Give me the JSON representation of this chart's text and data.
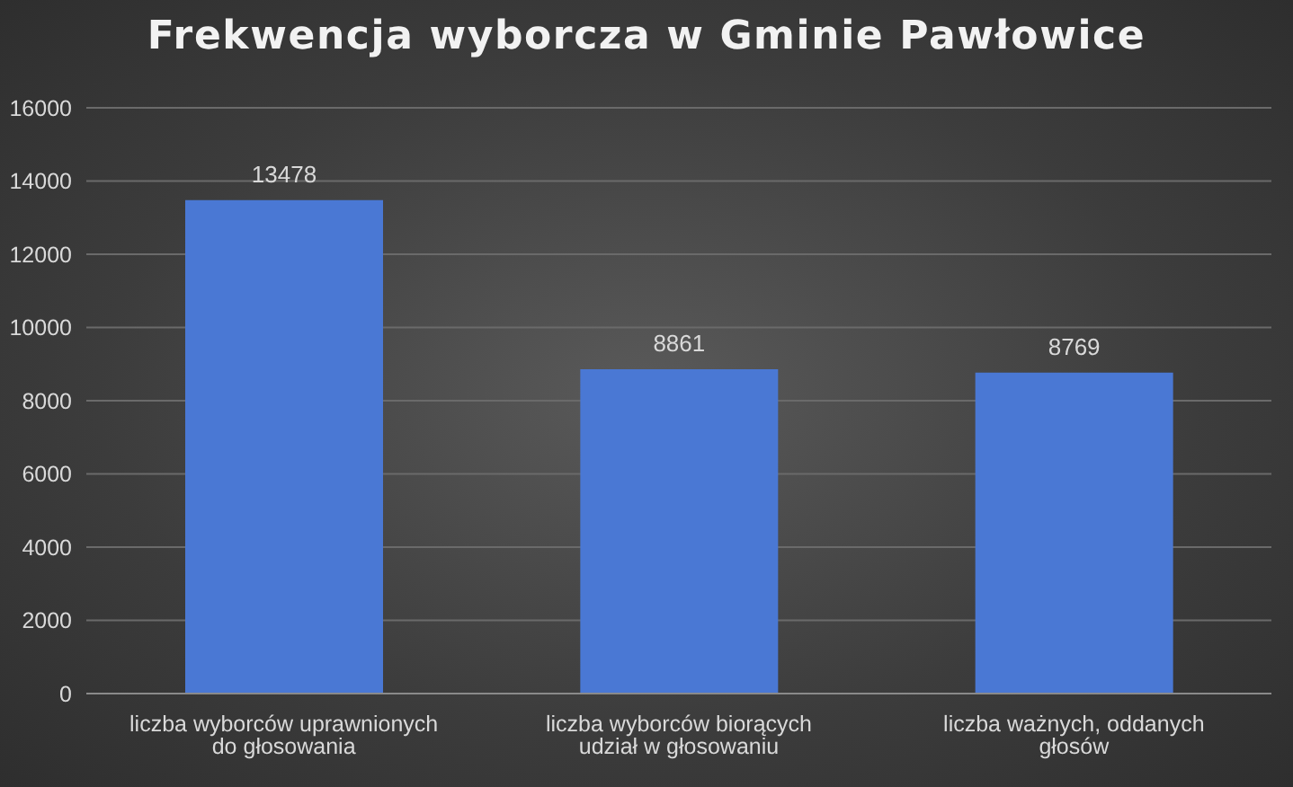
{
  "chart_data": {
    "type": "bar",
    "title": "Frekwencja wyborcza w Gminie Pawłowice",
    "categories": [
      "liczba wyborców uprawnionych do głosowania",
      "liczba wyborców biorących udział w głosowaniu",
      "liczba ważnych, oddanych głosów"
    ],
    "values": [
      13478,
      8861,
      8769
    ],
    "color": "#4a78d4",
    "ylim": [
      0,
      16000
    ],
    "yticks": [
      0,
      2000,
      4000,
      6000,
      8000,
      10000,
      12000,
      14000,
      16000
    ],
    "grid": "y",
    "data_labels": true
  }
}
